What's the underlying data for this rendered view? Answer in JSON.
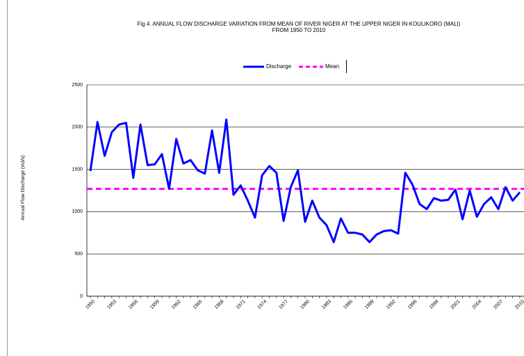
{
  "chart_data": {
    "type": "line",
    "title": [
      "Fig 4.  ANNUAL FLOW DISCHARGE VARIATION FROM MEAN OF RIVER NIGER AT THE UPPER NIGER IN KOULIKORO (MALI)",
      "FROM 1950 TO 2010"
    ],
    "y_label": "Annual Flow Discharge (m3/s)",
    "categories": [
      "1950",
      null,
      null,
      "1953",
      null,
      null,
      "1956",
      null,
      null,
      "1959",
      null,
      null,
      "1962",
      null,
      null,
      "1965",
      null,
      null,
      "1968",
      null,
      null,
      "1971",
      null,
      null,
      "1974",
      null,
      null,
      "1977",
      null,
      null,
      "1980",
      null,
      null,
      "1983",
      null,
      null,
      "1986",
      null,
      null,
      "1989",
      null,
      null,
      "1992",
      null,
      null,
      "1995",
      null,
      null,
      "1998",
      null,
      null,
      "2001",
      null,
      null,
      "2004",
      null,
      null,
      "2007",
      null,
      null,
      "2010"
    ],
    "series": [
      {
        "name": "Discharge",
        "color": "#0000ff",
        "values": [
          1480,
          2060,
          1660,
          1940,
          2030,
          2050,
          1400,
          2030,
          1550,
          1560,
          1680,
          1270,
          1860,
          1570,
          1610,
          1490,
          1450,
          1960,
          1460,
          2090,
          1200,
          1310,
          1130,
          930,
          1430,
          1540,
          1460,
          890,
          1290,
          1490,
          880,
          1130,
          930,
          840,
          640,
          920,
          750,
          750,
          730,
          640,
          730,
          770,
          780,
          740,
          1460,
          1320,
          1090,
          1030,
          1160,
          1130,
          1140,
          1260,
          910,
          1250,
          940,
          1090,
          1170,
          1030,
          1290,
          1130,
          1230
        ]
      }
    ],
    "reference_lines": [
      {
        "name": "Mean",
        "value": 1270,
        "color": "#ff00ff"
      }
    ],
    "ylim": [
      0,
      2500
    ],
    "yticks": [
      0,
      500,
      1000,
      1500,
      2000,
      2500
    ],
    "grid": true
  }
}
